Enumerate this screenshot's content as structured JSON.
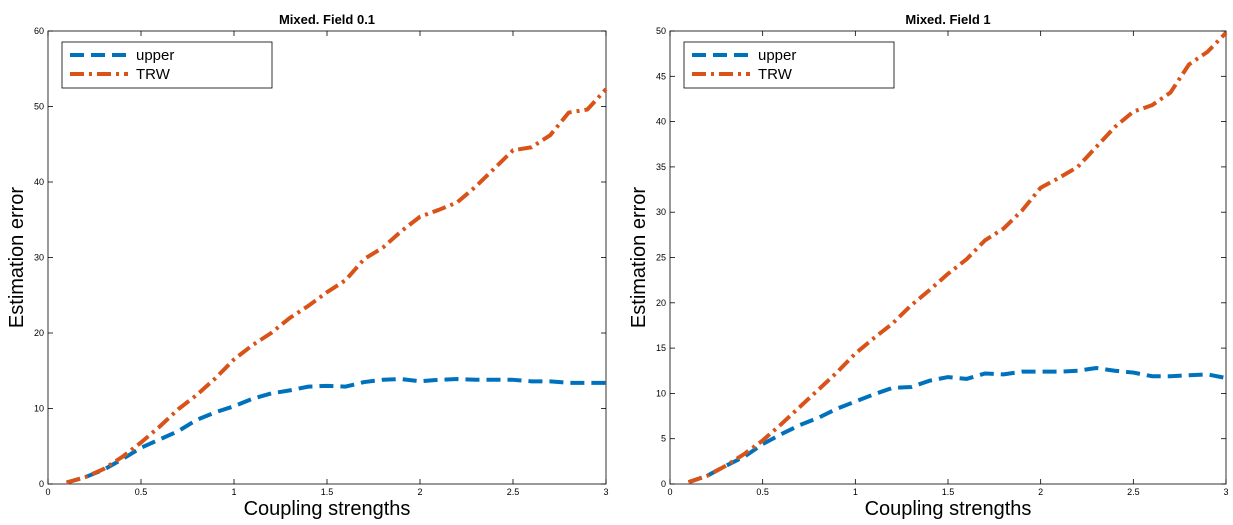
{
  "colors": {
    "upper": "#0072BD",
    "trw": "#D95319",
    "axis": "#000000",
    "background": "#ffffff"
  },
  "chart_data": [
    {
      "type": "line",
      "title": "Mixed. Field 0.1",
      "xlabel": "Coupling strengths",
      "ylabel": "Estimation error",
      "xlim": [
        0,
        3
      ],
      "ylim": [
        0,
        60
      ],
      "xticks": [
        0,
        0.5,
        1,
        1.5,
        2,
        2.5,
        3
      ],
      "xticklabels": [
        "0",
        "0.5",
        "1",
        "1.5",
        "2",
        "2.5",
        "3"
      ],
      "yticks": [
        0,
        10,
        20,
        30,
        40,
        50,
        60
      ],
      "yticklabels": [
        "0",
        "10",
        "20",
        "30",
        "40",
        "50",
        "60"
      ],
      "grid": false,
      "legend_position": "top-left",
      "x": [
        0.1,
        0.2,
        0.3,
        0.4,
        0.5,
        0.6,
        0.7,
        0.8,
        0.9,
        1.0,
        1.1,
        1.2,
        1.3,
        1.4,
        1.5,
        1.6,
        1.7,
        1.8,
        1.9,
        2.0,
        2.1,
        2.2,
        2.3,
        2.4,
        2.5,
        2.6,
        2.7,
        2.8,
        2.9,
        3.0
      ],
      "series": [
        {
          "name": "upper",
          "style": "dashed",
          "values": [
            0.2,
            0.9,
            1.9,
            3.3,
            4.8,
            5.9,
            7.0,
            8.5,
            9.5,
            10.3,
            11.3,
            12.0,
            12.4,
            12.9,
            13.0,
            12.9,
            13.5,
            13.8,
            13.9,
            13.6,
            13.8,
            13.9,
            13.8,
            13.8,
            13.8,
            13.6,
            13.6,
            13.4,
            13.4,
            13.4
          ]
        },
        {
          "name": "TRW",
          "style": "dashdot",
          "values": [
            0.2,
            0.9,
            2.0,
            3.6,
            5.5,
            7.6,
            9.9,
            11.8,
            14.0,
            16.5,
            18.4,
            20.0,
            22.0,
            23.6,
            25.4,
            27.0,
            29.8,
            31.3,
            33.5,
            35.4,
            36.3,
            37.3,
            39.4,
            41.8,
            44.2,
            44.6,
            46.2,
            49.2,
            49.6,
            52.3
          ]
        }
      ]
    },
    {
      "type": "line",
      "title": "Mixed. Field 1",
      "xlabel": "Coupling strengths",
      "ylabel": "Estimation error",
      "xlim": [
        0,
        3
      ],
      "ylim": [
        0,
        50
      ],
      "xticks": [
        0,
        0.5,
        1,
        1.5,
        2,
        2.5,
        3
      ],
      "xticklabels": [
        "0",
        "0.5",
        "1",
        "1.5",
        "2",
        "2.5",
        "3"
      ],
      "yticks": [
        0,
        5,
        10,
        15,
        20,
        25,
        30,
        35,
        40,
        45,
        50
      ],
      "yticklabels": [
        "0",
        "5",
        "10",
        "15",
        "20",
        "25",
        "30",
        "35",
        "40",
        "45",
        "50"
      ],
      "grid": false,
      "legend_position": "top-left",
      "x": [
        0.1,
        0.2,
        0.3,
        0.4,
        0.5,
        0.6,
        0.7,
        0.8,
        0.9,
        1.0,
        1.1,
        1.2,
        1.3,
        1.4,
        1.5,
        1.6,
        1.7,
        1.8,
        1.9,
        2.0,
        2.1,
        2.2,
        2.3,
        2.4,
        2.5,
        2.6,
        2.7,
        2.8,
        2.9,
        3.0
      ],
      "series": [
        {
          "name": "upper",
          "style": "dashed",
          "values": [
            0.2,
            0.9,
            2.0,
            3.0,
            4.4,
            5.5,
            6.5,
            7.3,
            8.3,
            9.1,
            9.9,
            10.6,
            10.7,
            11.4,
            11.8,
            11.6,
            12.2,
            12.1,
            12.4,
            12.4,
            12.4,
            12.5,
            12.8,
            12.5,
            12.3,
            11.9,
            11.9,
            12.0,
            12.1,
            11.7
          ]
        },
        {
          "name": "TRW",
          "style": "dashdot",
          "values": [
            0.2,
            0.9,
            2.0,
            3.3,
            4.8,
            6.6,
            8.5,
            10.4,
            12.3,
            14.4,
            16.1,
            17.7,
            19.7,
            21.4,
            23.2,
            24.8,
            26.9,
            28.2,
            30.2,
            32.7,
            33.8,
            35.0,
            37.2,
            39.4,
            41.1,
            41.8,
            43.2,
            46.3,
            47.7,
            49.8
          ]
        }
      ]
    }
  ]
}
